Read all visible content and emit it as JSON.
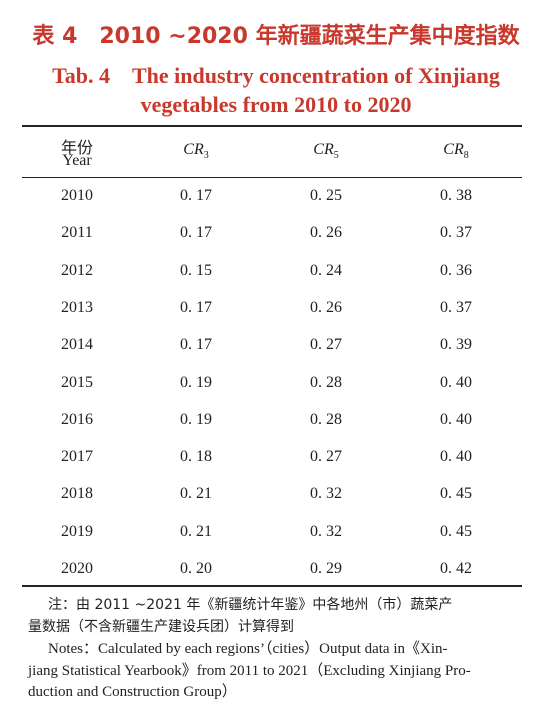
{
  "title": {
    "zh": "表 4　2010 ~2020 年新疆蔬菜生产集中度指数",
    "en": [
      "Tab. 4　The industry concentration of Xinjiang",
      "vegetables from 2010 to 2020"
    ]
  },
  "table": {
    "header": [
      [
        "年份",
        "Year"
      ],
      {
        "text": "CR",
        "sub": "3"
      },
      {
        "text": "CR",
        "sub": "5"
      },
      {
        "text": "CR",
        "sub": "8"
      }
    ],
    "rows": [
      [
        "2010",
        "0. 17",
        "0. 25",
        "0. 38"
      ],
      [
        "2011",
        "0. 17",
        "0. 26",
        "0. 37"
      ],
      [
        "2012",
        "0. 15",
        "0. 24",
        "0. 36"
      ],
      [
        "2013",
        "0. 17",
        "0. 26",
        "0. 37"
      ],
      [
        "2014",
        "0. 17",
        "0. 27",
        "0. 39"
      ],
      [
        "2015",
        "0. 19",
        "0. 28",
        "0. 40"
      ],
      [
        "2016",
        "0. 19",
        "0. 28",
        "0. 40"
      ],
      [
        "2017",
        "0. 18",
        "0. 27",
        "0. 40"
      ],
      [
        "2018",
        "0. 21",
        "0. 32",
        "0. 45"
      ],
      [
        "2019",
        "0. 21",
        "0. 32",
        "0. 45"
      ],
      [
        "2020",
        "0. 20",
        "0. 29",
        "0. 42"
      ]
    ]
  },
  "notes": {
    "zh": [
      "注：由 2011 ~2021 年《新疆统计年鉴》中各地州（市）蔬菜产",
      "量数据（不含新疆生产建设兵团）计算得到"
    ],
    "en": [
      "Notes：Calculated by each regions’（cities）Output data in《Xin-",
      "jiang Statistical Yearbook》from 2011 to 2021（Excluding Xinjiang Pro-",
      "duction and Construction Group）"
    ]
  }
}
